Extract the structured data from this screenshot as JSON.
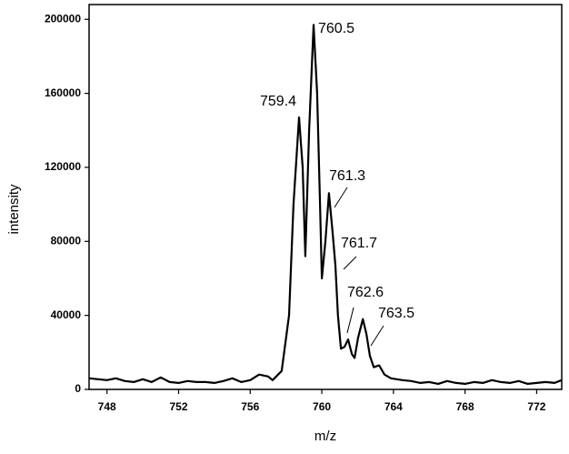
{
  "chart_data": {
    "type": "line",
    "x_label": "m/z",
    "y_label": "intensity",
    "xlim": [
      747,
      773.4
    ],
    "ylim": [
      0,
      208000
    ],
    "xticks": [
      748,
      752,
      756,
      760,
      764,
      768,
      772
    ],
    "yticks": [
      0,
      40000,
      80000,
      120000,
      160000,
      200000
    ],
    "color": "#000000",
    "annotations": [
      "759.4",
      "760.5",
      "761.3",
      "761.7",
      "762.6",
      "763.5"
    ],
    "x": [
      747,
      747.5,
      748,
      748.5,
      749,
      749.5,
      750,
      750.5,
      751,
      751.5,
      752,
      752.5,
      753,
      753.5,
      754,
      754.5,
      755,
      755.5,
      756,
      756.5,
      757,
      757.25,
      757.76,
      758.17,
      758.42,
      758.73,
      758.93,
      759.08,
      759.29,
      759.54,
      759.74,
      759.9,
      760.0,
      760.2,
      760.4,
      760.6,
      760.76,
      760.9,
      761.07,
      761.27,
      761.47,
      761.68,
      761.83,
      762.03,
      762.29,
      762.49,
      762.69,
      762.9,
      763.2,
      763.5,
      763.86,
      764.5,
      765,
      765.5,
      766,
      766.5,
      767,
      767.5,
      768,
      768.5,
      769,
      769.5,
      770,
      770.5,
      771,
      771.5,
      772,
      772.5,
      773,
      773.4
    ],
    "values": [
      6000,
      5500,
      5000,
      6000,
      4500,
      4000,
      5500,
      4000,
      6500,
      4000,
      3500,
      4500,
      4000,
      4000,
      3500,
      4500,
      6000,
      4000,
      5000,
      8000,
      7000,
      5000,
      10000,
      40000,
      100000,
      147000,
      120000,
      72000,
      140000,
      197000,
      160000,
      100000,
      60000,
      80000,
      106000,
      85000,
      67000,
      40000,
      22000,
      23000,
      27000,
      19000,
      17000,
      28000,
      38000,
      30000,
      18000,
      12000,
      13000,
      8000,
      6000,
      5000,
      4500,
      3500,
      4000,
      3000,
      4500,
      3500,
      3000,
      4000,
      3500,
      5000,
      4000,
      3500,
      4500,
      3000,
      3500,
      4000,
      3500,
      5000
    ]
  }
}
